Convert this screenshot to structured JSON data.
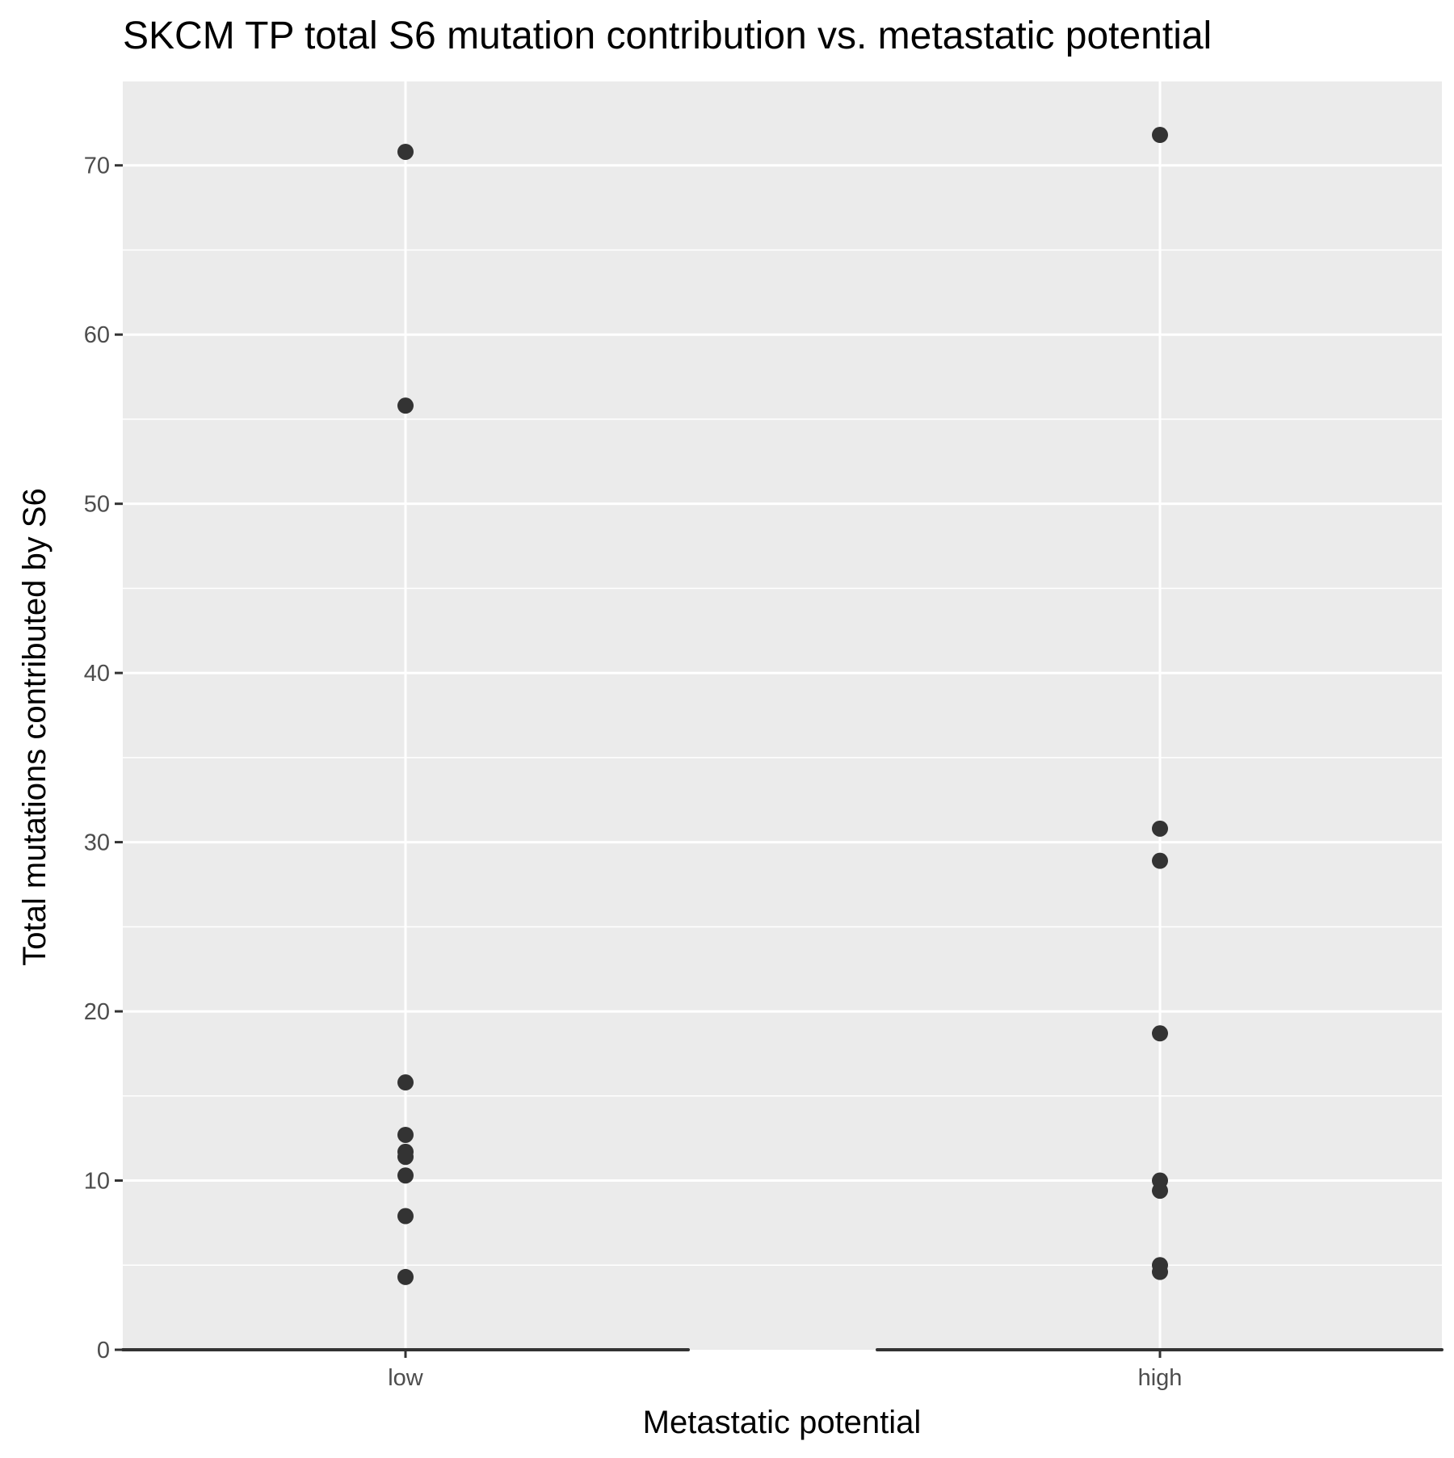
{
  "chart_data": {
    "type": "scatter",
    "title": "SKCM TP total S6 mutation contribution vs. metastatic potential",
    "xlabel": "Metastatic potential",
    "ylabel": "Total mutations contributed by S6",
    "categories": [
      "low",
      "high"
    ],
    "ylim": [
      0,
      75
    ],
    "yticks": [
      0,
      10,
      20,
      30,
      40,
      50,
      60,
      70
    ],
    "y_tick_labels": [
      "0",
      "10",
      "20",
      "30",
      "40",
      "50",
      "60",
      "70"
    ],
    "grid": true,
    "points": [
      {
        "x": "low",
        "y": 70.8
      },
      {
        "x": "low",
        "y": 55.8
      },
      {
        "x": "low",
        "y": 15.8
      },
      {
        "x": "low",
        "y": 12.7
      },
      {
        "x": "low",
        "y": 11.7
      },
      {
        "x": "low",
        "y": 11.4
      },
      {
        "x": "low",
        "y": 10.3
      },
      {
        "x": "low",
        "y": 7.9
      },
      {
        "x": "low",
        "y": 4.3
      },
      {
        "x": "high",
        "y": 71.8
      },
      {
        "x": "high",
        "y": 30.8
      },
      {
        "x": "high",
        "y": 28.9
      },
      {
        "x": "high",
        "y": 18.7
      },
      {
        "x": "high",
        "y": 10.0
      },
      {
        "x": "high",
        "y": 9.4
      },
      {
        "x": "high",
        "y": 5.0
      },
      {
        "x": "high",
        "y": 4.6
      }
    ],
    "colors": {
      "panel_background": "#ebebeb",
      "grid_major": "#ffffff",
      "grid_minor": "#ffffff",
      "point": "#333333",
      "baseline": "#333333",
      "tick_mark": "#333333",
      "tick_label": "#4d4d4d",
      "text": "#000000"
    }
  }
}
